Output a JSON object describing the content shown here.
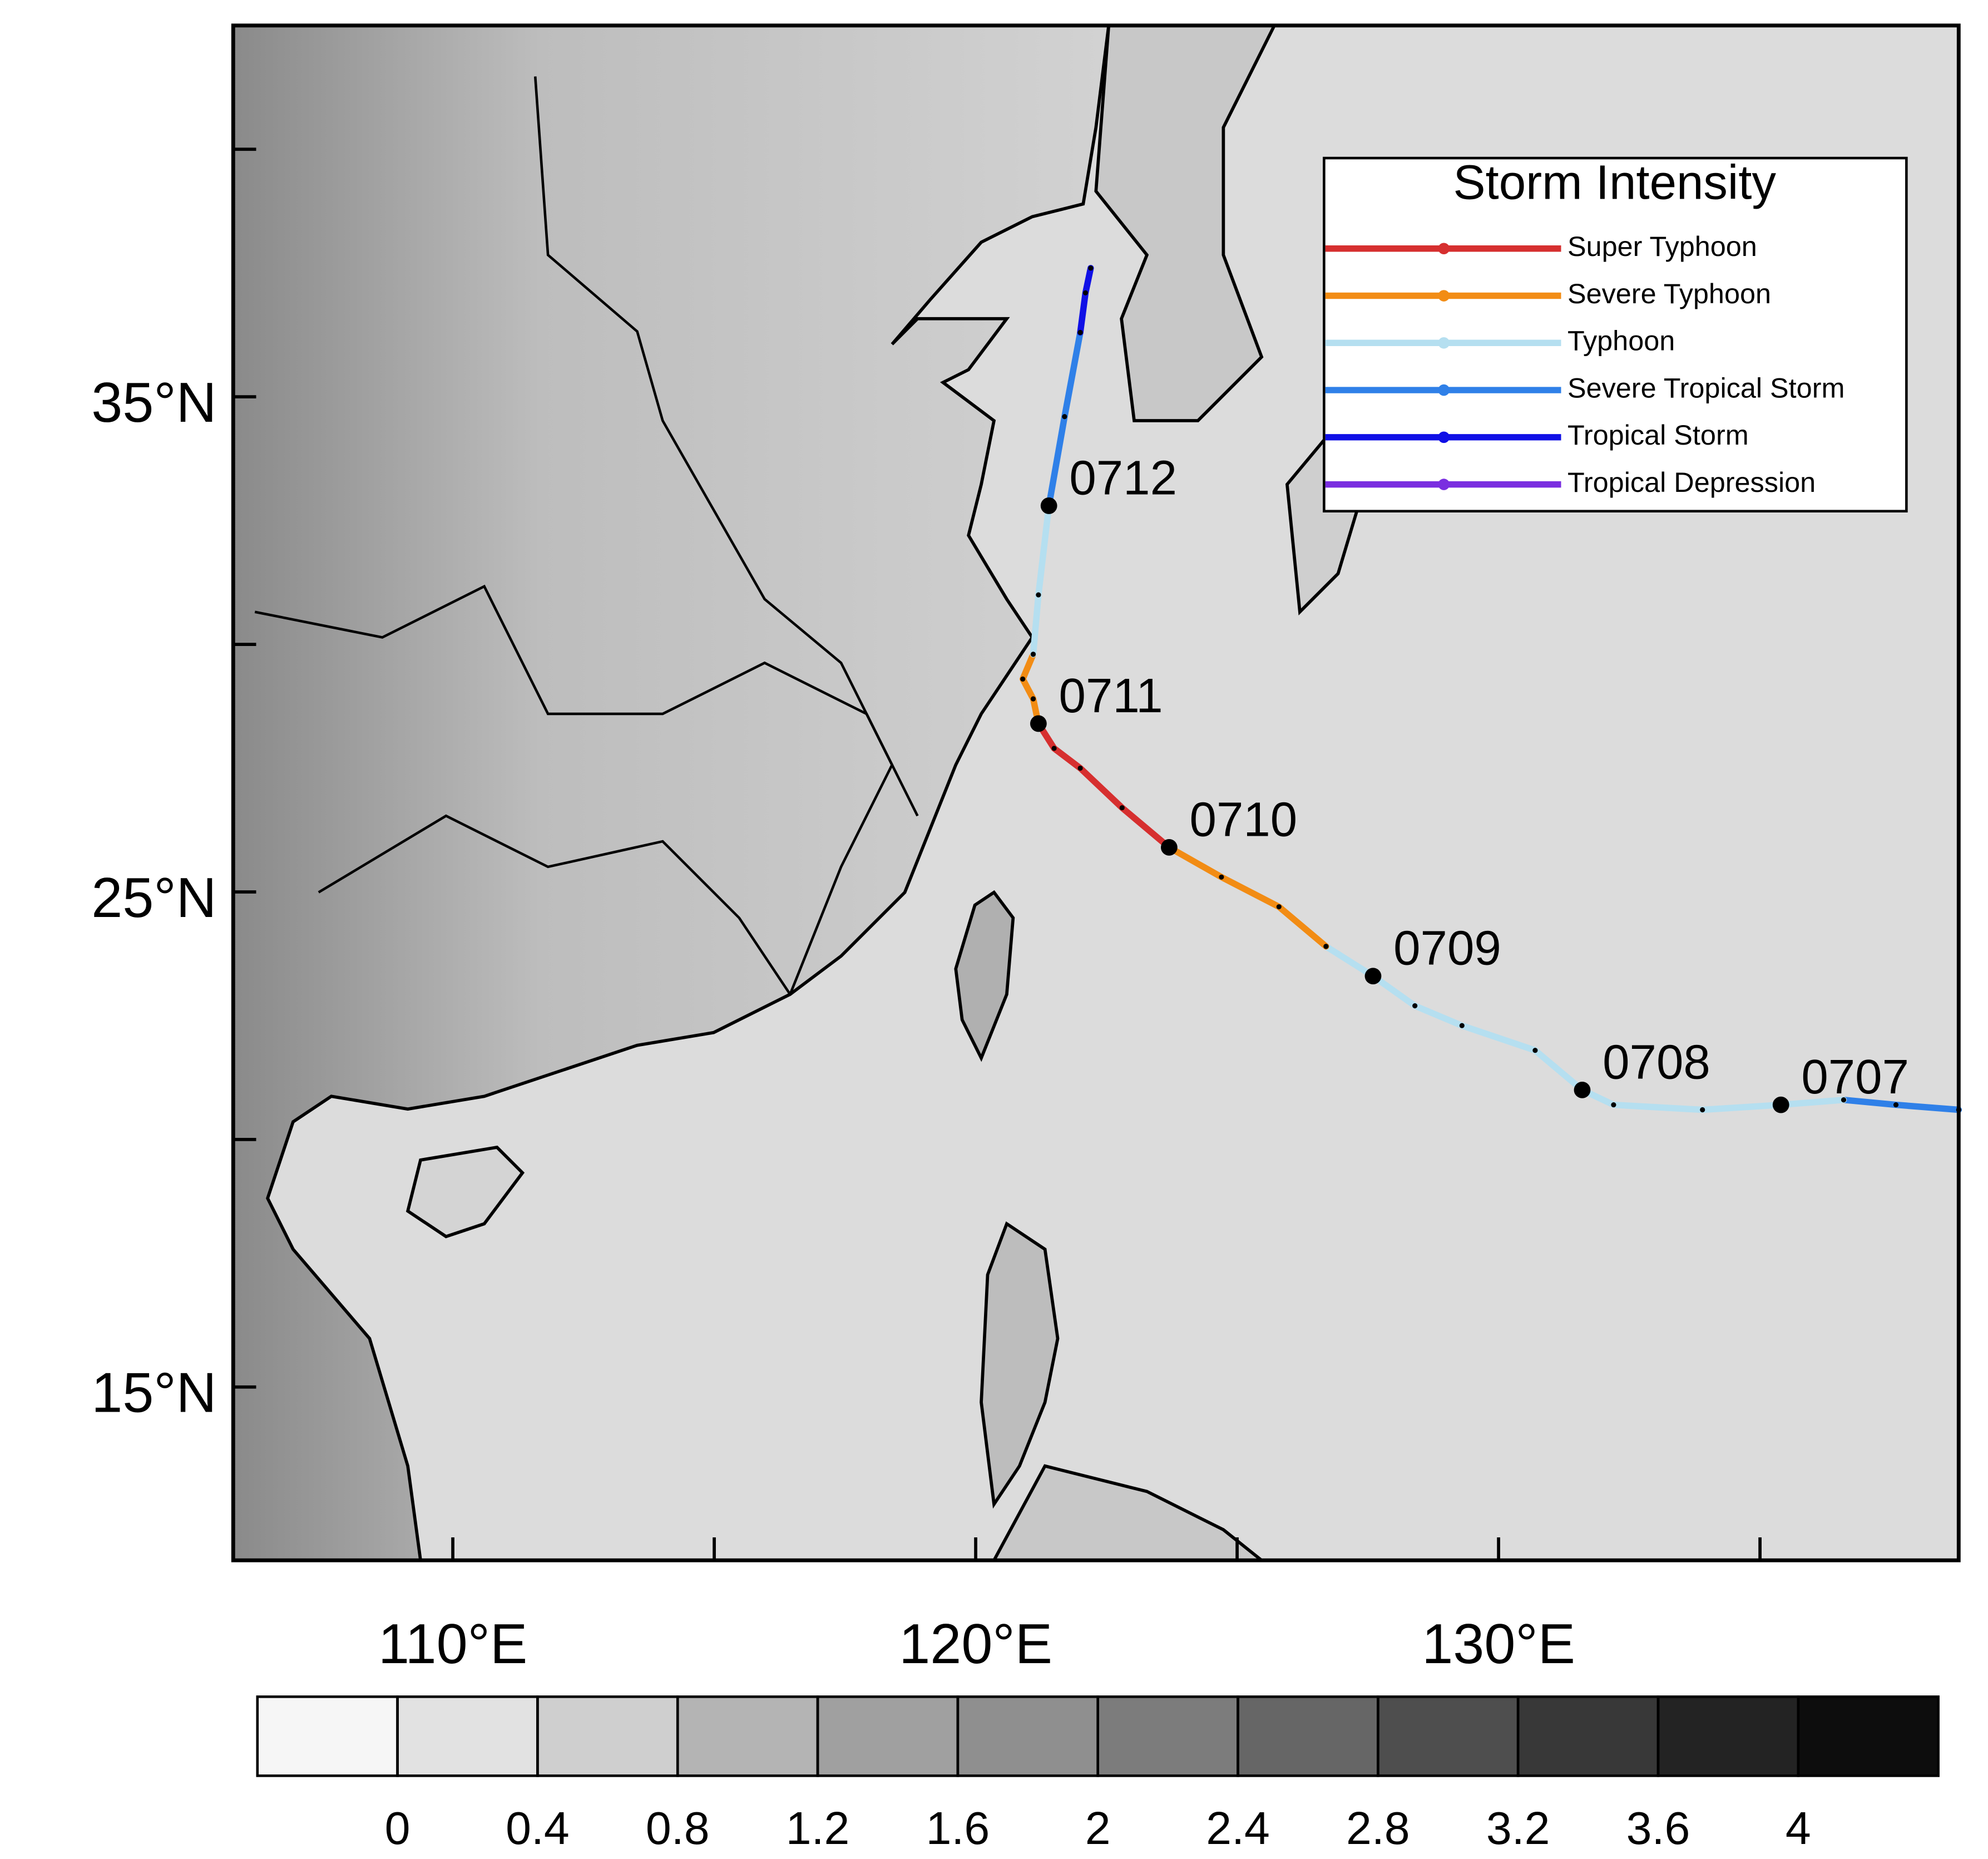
{
  "chart_data": {
    "type": "map",
    "xlim": [
      105.8,
      138.8
    ],
    "ylim": [
      11.5,
      42.5
    ],
    "xticks": [
      {
        "value": 110,
        "label": "110°E"
      },
      {
        "value": 120,
        "label": "120°E"
      },
      {
        "value": 130,
        "label": "130°E"
      }
    ],
    "xticks_minor": [
      115,
      125,
      135
    ],
    "yticks": [
      {
        "value": 15,
        "label": "15°N"
      },
      {
        "value": 25,
        "label": "25°N"
      },
      {
        "value": 35,
        "label": "35°N"
      }
    ],
    "yticks_minor": [
      20,
      30,
      40
    ],
    "legend": {
      "title": "Storm Intensity",
      "entries": [
        {
          "name": "Super Typhoon",
          "color": "#d62f2f"
        },
        {
          "name": "Severe Typhoon",
          "color": "#f28c14"
        },
        {
          "name": "Typhoon",
          "color": "#b5dff0"
        },
        {
          "name": "Severe Tropical Storm",
          "color": "#2f80e8"
        },
        {
          "name": "Tropical Storm",
          "color": "#1010e6"
        },
        {
          "name": "Tropical Depression",
          "color": "#7a2ee0"
        }
      ]
    },
    "track": [
      {
        "color": "#2f80e8",
        "points": [
          [
            138.8,
            20.6
          ],
          [
            137.6,
            20.7
          ],
          [
            136.6,
            20.8
          ]
        ]
      },
      {
        "color": "#b5dff0",
        "points": [
          [
            136.6,
            20.8
          ],
          [
            135.4,
            20.7
          ],
          [
            133.9,
            20.6
          ],
          [
            132.2,
            20.7
          ],
          [
            131.6,
            21.0
          ],
          [
            130.7,
            21.8
          ],
          [
            129.3,
            22.3
          ],
          [
            128.4,
            22.7
          ],
          [
            127.6,
            23.3
          ],
          [
            126.7,
            23.9
          ]
        ]
      },
      {
        "color": "#f28c14",
        "points": [
          [
            126.7,
            23.9
          ],
          [
            125.8,
            24.7
          ],
          [
            124.7,
            25.3
          ],
          [
            123.7,
            25.9
          ]
        ]
      },
      {
        "color": "#d62f2f",
        "points": [
          [
            123.7,
            25.9
          ],
          [
            122.8,
            26.7
          ],
          [
            122.0,
            27.5
          ],
          [
            121.5,
            27.9
          ],
          [
            121.2,
            28.4
          ]
        ]
      },
      {
        "color": "#f28c14",
        "points": [
          [
            121.2,
            28.4
          ],
          [
            121.1,
            28.9
          ],
          [
            120.9,
            29.3
          ],
          [
            121.1,
            29.8
          ]
        ]
      },
      {
        "color": "#b5dff0",
        "points": [
          [
            121.1,
            29.8
          ],
          [
            121.2,
            31.0
          ],
          [
            121.4,
            32.8
          ]
        ]
      },
      {
        "color": "#2f80e8",
        "points": [
          [
            121.4,
            32.8
          ],
          [
            121.7,
            34.6
          ],
          [
            122.0,
            36.3
          ]
        ]
      },
      {
        "color": "#1010e6",
        "points": [
          [
            122.0,
            36.3
          ],
          [
            122.1,
            37.1
          ],
          [
            122.2,
            37.6
          ]
        ]
      }
    ],
    "track_labels": [
      {
        "text": "0707",
        "lon": 135.4,
        "lat": 20.7
      },
      {
        "text": "0708",
        "lon": 131.6,
        "lat": 21.0
      },
      {
        "text": "0709",
        "lon": 127.6,
        "lat": 23.3
      },
      {
        "text": "0710",
        "lon": 123.7,
        "lat": 25.9
      },
      {
        "text": "0711",
        "lon": 121.2,
        "lat": 28.4
      },
      {
        "text": "0712",
        "lon": 121.4,
        "lat": 32.8
      }
    ],
    "colorbar": {
      "ticks": [
        0,
        0.4,
        0.8,
        1.2,
        1.6,
        2,
        2.4,
        2.8,
        3.2,
        3.6,
        4
      ],
      "colors": [
        "#f6f6f6",
        "#e2e2e2",
        "#cfcfcf",
        "#b4b4b4",
        "#a0a0a0",
        "#8f8f8f",
        "#7c7c7c",
        "#666666",
        "#4e4e4e",
        "#383838",
        "#232323",
        "#0d0d0d"
      ]
    }
  }
}
